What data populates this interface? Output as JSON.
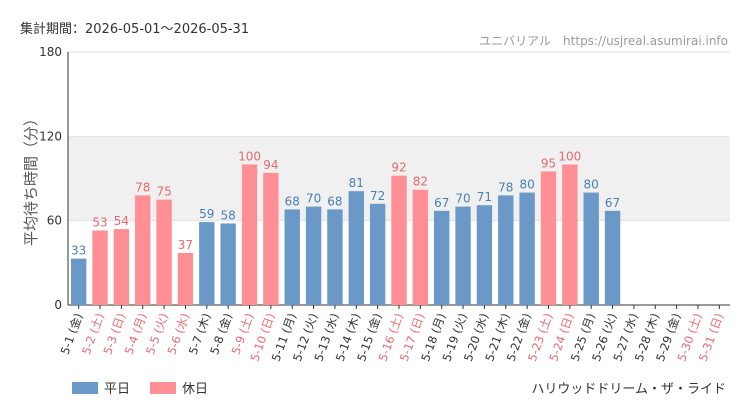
{
  "header": {
    "period": "集計期間：2026-05-01～2026-05-31",
    "site": "ユニバリアル　https://usjreal.asumirai.info"
  },
  "footer": {
    "ride_name": "ハリウッドドリーム・ザ・ライド"
  },
  "colors": {
    "weekday": "#6a99c8",
    "holiday": "#ff8f94",
    "weekday_text": "#4a7fb5",
    "holiday_text": "#e66a70",
    "band": "#f0f0f0",
    "axis": "#333333"
  },
  "chart_data": {
    "type": "bar",
    "ylabel": "平均待ち時間（分）",
    "xlabel": "",
    "ylim": [
      0,
      180
    ],
    "yticks": [
      0,
      60,
      120,
      180
    ],
    "highlight_band": [
      60,
      120
    ],
    "categories": [
      "5-1 (金)",
      "5-2 (土)",
      "5-3 (日)",
      "5-4 (月)",
      "5-5 (火)",
      "5-6 (水)",
      "5-7 (木)",
      "5-8 (金)",
      "5-9 (土)",
      "5-10 (日)",
      "5-11 (月)",
      "5-12 (火)",
      "5-13 (水)",
      "5-14 (木)",
      "5-15 (金)",
      "5-16 (土)",
      "5-17 (日)",
      "5-18 (月)",
      "5-19 (火)",
      "5-20 (水)",
      "5-21 (木)",
      "5-22 (金)",
      "5-23 (土)",
      "5-24 (日)",
      "5-25 (月)",
      "5-26 (火)",
      "5-27 (水)",
      "5-28 (木)",
      "5-29 (金)",
      "5-30 (土)",
      "5-31 (日)"
    ],
    "day_types": [
      "weekday",
      "holiday",
      "holiday",
      "holiday",
      "holiday",
      "holiday",
      "weekday",
      "weekday",
      "holiday",
      "holiday",
      "weekday",
      "weekday",
      "weekday",
      "weekday",
      "weekday",
      "holiday",
      "holiday",
      "weekday",
      "weekday",
      "weekday",
      "weekday",
      "weekday",
      "holiday",
      "holiday",
      "weekday",
      "weekday",
      "weekday",
      "weekday",
      "weekday",
      "holiday",
      "holiday"
    ],
    "values": [
      33,
      53,
      54,
      78,
      75,
      37,
      59,
      58,
      100,
      94,
      68,
      70,
      68,
      81,
      72,
      92,
      82,
      67,
      70,
      71,
      78,
      80,
      95,
      100,
      80,
      67,
      null,
      null,
      null,
      null,
      null
    ],
    "legend": [
      {
        "key": "weekday",
        "label": "平日"
      },
      {
        "key": "holiday",
        "label": "休日"
      }
    ],
    "legend_position": "bottom-left"
  }
}
